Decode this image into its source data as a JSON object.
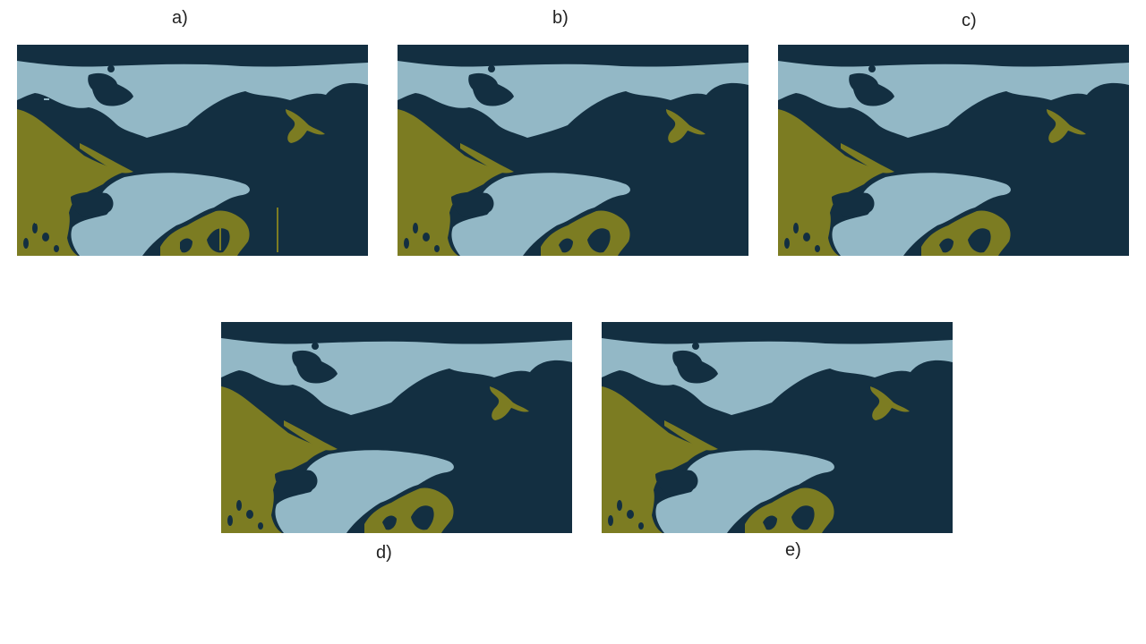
{
  "panels": [
    {
      "id": "a",
      "label": "a)"
    },
    {
      "id": "b",
      "label": "b)"
    },
    {
      "id": "c",
      "label": "c)"
    },
    {
      "id": "d",
      "label": "d)"
    },
    {
      "id": "e",
      "label": "e)"
    }
  ],
  "palette": {
    "dark_teal": "#132f41",
    "light_blue": "#93b8c6",
    "olive": "#7c7c22"
  }
}
